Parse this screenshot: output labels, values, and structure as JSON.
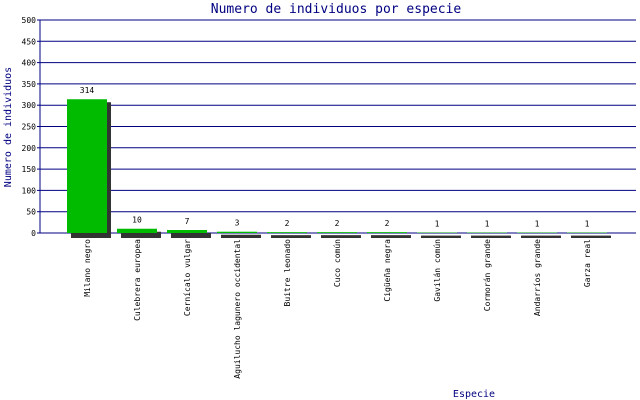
{
  "chart_data": {
    "type": "bar",
    "title": "Numero de individuos por especie",
    "x_label": "Especie",
    "y_label": "Numero de individuos",
    "categories": [
      "Milano negro",
      "Culebrera europea",
      "Cernícalo vulgar",
      "Aguilucho lagunero occidental",
      "Buitre leonado",
      "Cuco común",
      "Cigüeña negra",
      "Gavilán común",
      "Cormorán grande",
      "Andarríos grande",
      "Garza real"
    ],
    "values": [
      314,
      10,
      7,
      3,
      2,
      2,
      2,
      1,
      1,
      1,
      1
    ],
    "color": "#00bb00",
    "ylim": [
      0,
      500
    ],
    "yticks": [
      0,
      50,
      100,
      150,
      200,
      250,
      300,
      350,
      400,
      450,
      500
    ],
    "grid": true
  }
}
